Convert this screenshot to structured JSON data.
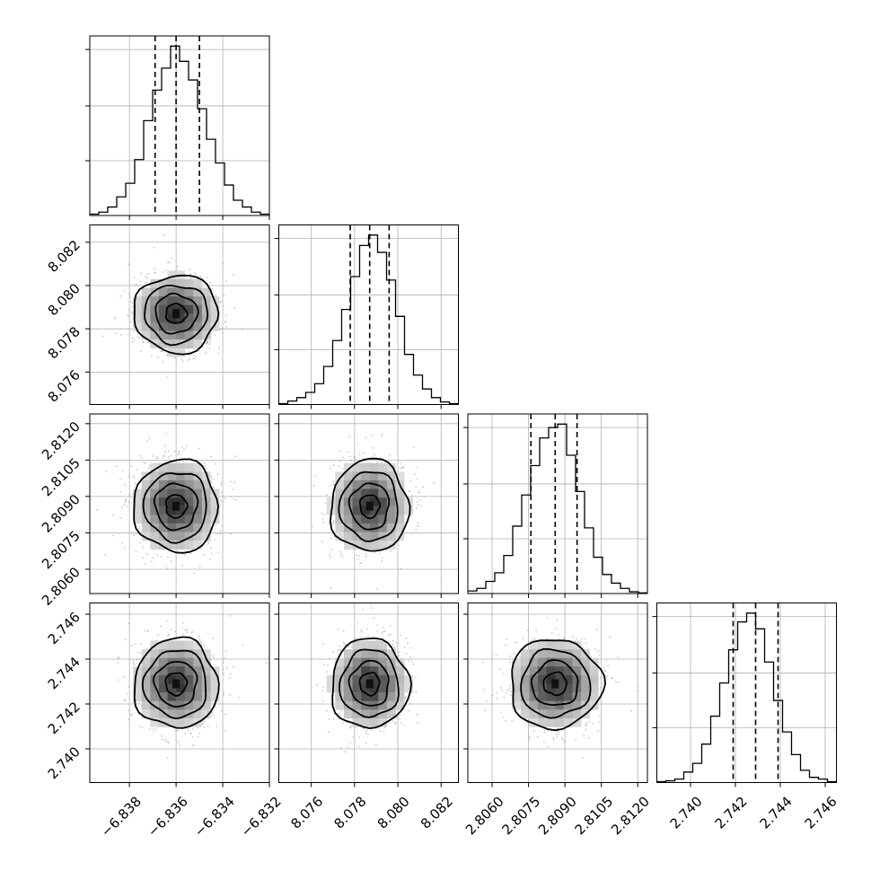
{
  "chart_data": {
    "type": "corner",
    "grid": true,
    "parameters": [
      {
        "range": [
          -6.8397,
          -6.832
        ],
        "ticks": [
          -6.838,
          -6.836,
          -6.834,
          -6.832
        ],
        "tick_labels": [
          "−6.838",
          "−6.836",
          "−6.834",
          "−6.832"
        ],
        "mean": -6.836,
        "sigma": 0.0009,
        "quantiles": [
          -6.8369,
          -6.836,
          -6.835
        ]
      },
      {
        "range": [
          8.0745,
          8.0828
        ],
        "ticks": [
          8.076,
          8.078,
          8.08,
          8.082
        ],
        "tick_labels": [
          "8.076",
          "8.078",
          "8.080",
          "8.082"
        ],
        "mean": 8.0787,
        "sigma": 0.0009,
        "quantiles": [
          8.0778,
          8.0787,
          8.0796
        ]
      },
      {
        "range": [
          2.805,
          2.8124
        ],
        "ticks": [
          2.806,
          2.8075,
          2.809,
          2.8105,
          2.812
        ],
        "tick_labels": [
          "2.8060",
          "2.8075",
          "2.8090",
          "2.8105",
          "2.8120"
        ],
        "mean": 2.8086,
        "sigma": 0.00095,
        "quantiles": [
          2.8076,
          2.8086,
          2.8095
        ]
      },
      {
        "range": [
          2.7385,
          2.7465
        ],
        "ticks": [
          2.74,
          2.742,
          2.744,
          2.746
        ],
        "tick_labels": [
          "2.740",
          "2.742",
          "2.744",
          "2.746"
        ],
        "mean": 2.7429,
        "sigma": 0.001,
        "quantiles": [
          2.7419,
          2.7429,
          2.7439
        ]
      }
    ],
    "histograms": [
      {
        "param": 0,
        "bins": 20,
        "range": [
          -6.8397,
          -6.832
        ],
        "counts": [
          0.008,
          0.02,
          0.05,
          0.11,
          0.19,
          0.33,
          0.56,
          0.74,
          0.87,
          1.0,
          0.91,
          0.8,
          0.63,
          0.45,
          0.31,
          0.18,
          0.09,
          0.05,
          0.02,
          0.008
        ]
      },
      {
        "param": 1,
        "bins": 20,
        "range": [
          8.0745,
          8.0828
        ],
        "counts": [
          0.005,
          0.02,
          0.04,
          0.07,
          0.12,
          0.22,
          0.37,
          0.55,
          0.74,
          0.92,
          0.98,
          0.88,
          0.72,
          0.51,
          0.29,
          0.17,
          0.09,
          0.04,
          0.015,
          0.005
        ]
      },
      {
        "param": 2,
        "bins": 20,
        "range": [
          2.805,
          2.8124
        ],
        "counts": [
          0.015,
          0.03,
          0.07,
          0.12,
          0.22,
          0.39,
          0.57,
          0.74,
          0.9,
          0.96,
          0.98,
          0.8,
          0.59,
          0.38,
          0.21,
          0.11,
          0.06,
          0.03,
          0.01,
          0.004
        ]
      },
      {
        "param": 3,
        "bins": 20,
        "range": [
          2.7385,
          2.7465
        ],
        "counts": [
          0.005,
          0.01,
          0.02,
          0.06,
          0.11,
          0.22,
          0.38,
          0.57,
          0.76,
          0.92,
          0.97,
          0.88,
          0.69,
          0.47,
          0.29,
          0.16,
          0.07,
          0.03,
          0.02,
          0.005
        ]
      }
    ]
  }
}
